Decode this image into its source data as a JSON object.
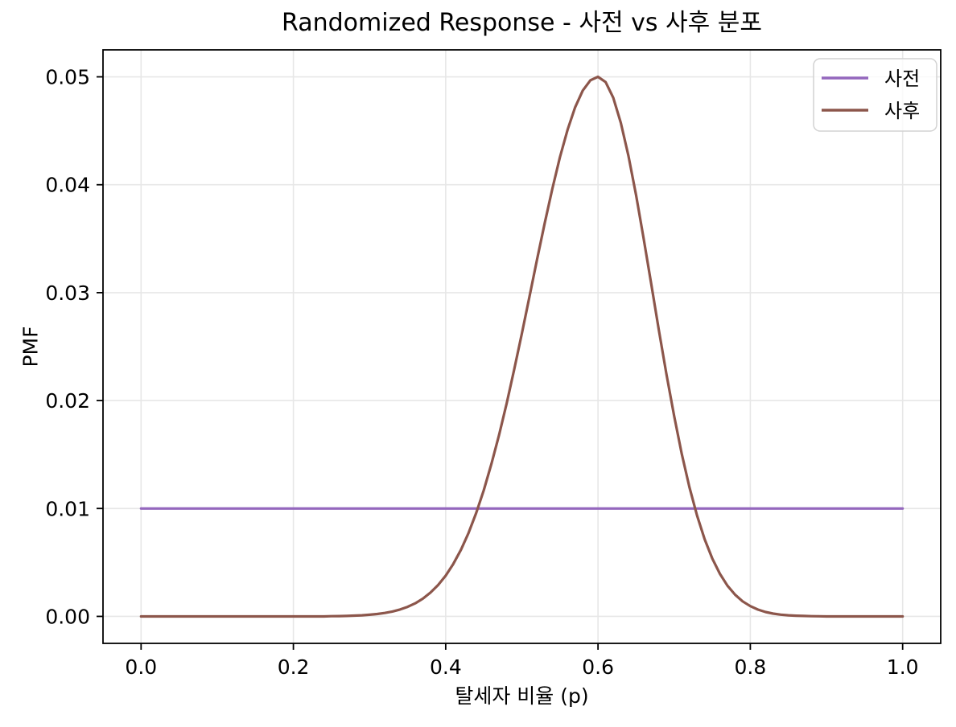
{
  "colors": {
    "background": "#ffffff",
    "text": "#000000"
  },
  "chart_data": {
    "type": "line",
    "title": "Randomized Response - 사전 vs 사후 분포",
    "xlabel": "탈세자 비율 (p)",
    "ylabel": "PMF",
    "xlim": [
      -0.05,
      1.05
    ],
    "ylim": [
      -0.0025,
      0.0525
    ],
    "xticks": {
      "values": [
        0.0,
        0.2,
        0.4,
        0.6,
        0.8,
        1.0
      ],
      "labels": [
        "0.0",
        "0.2",
        "0.4",
        "0.6",
        "0.8",
        "1.0"
      ]
    },
    "yticks": {
      "values": [
        0.0,
        0.01,
        0.02,
        0.03,
        0.04,
        0.05
      ],
      "labels": [
        "0.00",
        "0.01",
        "0.02",
        "0.03",
        "0.04",
        "0.05"
      ]
    },
    "grid": {
      "show": true,
      "color": "#e7e7e7"
    },
    "axis_color": "#000000",
    "legend": {
      "location": "upper right",
      "border_color": "#d2d2d2",
      "background": "#ffffff"
    },
    "x": [
      0.0,
      0.01,
      0.02,
      0.03,
      0.04,
      0.05,
      0.06,
      0.07,
      0.08,
      0.09,
      0.1,
      0.11,
      0.12,
      0.13,
      0.14,
      0.15,
      0.16,
      0.17,
      0.18,
      0.19,
      0.2,
      0.21,
      0.22,
      0.23,
      0.24,
      0.25,
      0.26,
      0.27,
      0.28,
      0.29,
      0.3,
      0.31,
      0.32,
      0.33,
      0.34,
      0.35,
      0.36,
      0.37,
      0.38,
      0.39,
      0.4,
      0.41,
      0.42,
      0.43,
      0.44,
      0.45,
      0.46,
      0.47,
      0.48,
      0.49,
      0.5,
      0.51,
      0.52,
      0.53,
      0.54,
      0.55,
      0.56,
      0.57,
      0.58,
      0.59,
      0.6,
      0.61,
      0.62,
      0.63,
      0.64,
      0.65,
      0.66,
      0.67,
      0.68,
      0.69,
      0.7,
      0.71,
      0.72,
      0.73,
      0.74,
      0.75,
      0.76,
      0.77,
      0.78,
      0.79,
      0.8,
      0.81,
      0.82,
      0.83,
      0.84,
      0.85,
      0.86,
      0.87,
      0.88,
      0.89,
      0.9,
      0.91,
      0.92,
      0.93,
      0.94,
      0.95,
      0.96,
      0.97,
      0.98,
      0.99,
      1.0
    ],
    "series": [
      {
        "id": "prior",
        "name": "사전",
        "color": "#9467bd",
        "linewidth": 3.2,
        "values": [
          0.01,
          0.01,
          0.01,
          0.01,
          0.01,
          0.01,
          0.01,
          0.01,
          0.01,
          0.01,
          0.01,
          0.01,
          0.01,
          0.01,
          0.01,
          0.01,
          0.01,
          0.01,
          0.01,
          0.01,
          0.01,
          0.01,
          0.01,
          0.01,
          0.01,
          0.01,
          0.01,
          0.01,
          0.01,
          0.01,
          0.01,
          0.01,
          0.01,
          0.01,
          0.01,
          0.01,
          0.01,
          0.01,
          0.01,
          0.01,
          0.01,
          0.01,
          0.01,
          0.01,
          0.01,
          0.01,
          0.01,
          0.01,
          0.01,
          0.01,
          0.01,
          0.01,
          0.01,
          0.01,
          0.01,
          0.01,
          0.01,
          0.01,
          0.01,
          0.01,
          0.01,
          0.01,
          0.01,
          0.01,
          0.01,
          0.01,
          0.01,
          0.01,
          0.01,
          0.01,
          0.01,
          0.01,
          0.01,
          0.01,
          0.01,
          0.01,
          0.01,
          0.01,
          0.01,
          0.01,
          0.01,
          0.01,
          0.01,
          0.01,
          0.01,
          0.01,
          0.01,
          0.01,
          0.01,
          0.01,
          0.01,
          0.01,
          0.01,
          0.01,
          0.01,
          0.01,
          0.01,
          0.01,
          0.01,
          0.01,
          0.01
        ]
      },
      {
        "id": "posterior",
        "name": "사후",
        "color": "#8c564b",
        "linewidth": 3.2,
        "values": [
          0.0,
          0.0,
          0.0,
          0.0,
          0.0,
          0.0,
          0.0,
          0.0,
          0.0,
          0.0,
          0.0,
          0.0,
          0.0,
          0.0,
          0.0,
          0.0,
          0.0,
          0.0,
          0.0,
          0.0,
          0.0,
          0.0,
          0.0,
          0.0,
          0.0,
          2e-05,
          3e-05,
          4e-05,
          7e-05,
          0.0001,
          0.00015,
          0.00022,
          0.00032,
          0.00045,
          0.00064,
          0.00088,
          0.00121,
          0.00164,
          0.0022,
          0.0029,
          0.00378,
          0.00486,
          0.00617,
          0.00774,
          0.00957,
          0.0117,
          0.01411,
          0.01679,
          0.01973,
          0.02289,
          0.02621,
          0.02964,
          0.03308,
          0.03644,
          0.03963,
          0.04255,
          0.04509,
          0.04718,
          0.04873,
          0.04968,
          0.05,
          0.04951,
          0.04806,
          0.04573,
          0.04266,
          0.03902,
          0.03499,
          0.03075,
          0.0265,
          0.02239,
          0.01855,
          0.01506,
          0.01198,
          0.00935,
          0.00716,
          0.00537,
          0.00395,
          0.00284,
          0.00201,
          0.00139,
          0.00095,
          0.00063,
          0.00041,
          0.00026,
          0.00016,
          0.0001,
          6e-05,
          4e-05,
          2e-05,
          1e-05,
          0.0,
          0.0,
          0.0,
          0.0,
          0.0,
          0.0,
          0.0,
          0.0,
          0.0,
          0.0,
          0.0
        ]
      }
    ]
  }
}
